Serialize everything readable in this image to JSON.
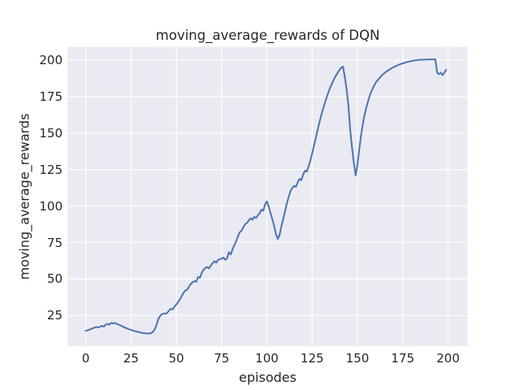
{
  "chart_data": {
    "type": "line",
    "title": "moving_average_rewards of DQN",
    "xlabel": "episodes",
    "ylabel": "moving_average_rewards",
    "x_ticks": [
      0,
      25,
      50,
      75,
      100,
      125,
      150,
      175,
      200
    ],
    "y_ticks": [
      25,
      50,
      75,
      100,
      125,
      150,
      175,
      200
    ],
    "xlim": [
      -10,
      210.8
    ],
    "ylim": [
      4,
      209.1
    ],
    "grid": true,
    "legend": null,
    "colors": {
      "line": "#4c72b0",
      "axes_background": "#eaeaf2",
      "grid": "#ffffff",
      "figure_background": "#ffffff",
      "text": "#262626"
    },
    "series": [
      {
        "name": "moving_average_rewards",
        "points": [
          [
            0,
            14.5
          ],
          [
            1,
            14.8
          ],
          [
            2,
            15.3
          ],
          [
            3,
            15.8
          ],
          [
            4,
            16.3
          ],
          [
            5,
            16.8
          ],
          [
            6,
            17.2
          ],
          [
            7,
            16.7
          ],
          [
            8,
            17.4
          ],
          [
            9,
            17.9
          ],
          [
            10,
            17.4
          ],
          [
            11,
            18.8
          ],
          [
            12,
            19.2
          ],
          [
            13,
            18.7
          ],
          [
            14,
            19.9
          ],
          [
            15,
            19.6
          ],
          [
            16,
            19.9
          ],
          [
            17,
            19.3
          ],
          [
            18,
            18.8
          ],
          [
            19,
            18.3
          ],
          [
            20,
            17.6
          ],
          [
            21,
            17.1
          ],
          [
            22,
            16.5
          ],
          [
            23,
            16.0
          ],
          [
            24,
            15.5
          ],
          [
            25,
            15.1
          ],
          [
            26,
            14.7
          ],
          [
            27,
            14.3
          ],
          [
            28,
            14.0
          ],
          [
            29,
            13.7
          ],
          [
            30,
            13.4
          ],
          [
            31,
            13.1
          ],
          [
            32,
            12.9
          ],
          [
            33,
            12.8
          ],
          [
            34,
            12.7
          ],
          [
            35,
            12.6
          ],
          [
            36,
            12.9
          ],
          [
            37,
            13.7
          ],
          [
            38,
            15.4
          ],
          [
            39,
            18.3
          ],
          [
            40,
            22.4
          ],
          [
            41,
            24.6
          ],
          [
            42,
            25.9
          ],
          [
            43,
            26.4
          ],
          [
            44,
            26.1
          ],
          [
            45,
            26.9
          ],
          [
            46,
            28.4
          ],
          [
            47,
            29.6
          ],
          [
            48,
            29.2
          ],
          [
            49,
            31.2
          ],
          [
            50,
            32.6
          ],
          [
            51,
            34.2
          ],
          [
            52,
            36.2
          ],
          [
            53,
            38.4
          ],
          [
            54,
            40.6
          ],
          [
            55,
            42.2
          ],
          [
            56,
            42.6
          ],
          [
            57,
            44.8
          ],
          [
            58,
            46.6
          ],
          [
            59,
            47.8
          ],
          [
            60,
            48.6
          ],
          [
            61,
            48.1
          ],
          [
            62,
            51.4
          ],
          [
            63,
            50.8
          ],
          [
            64,
            54.2
          ],
          [
            65,
            56.2
          ],
          [
            66,
            57.6
          ],
          [
            67,
            58.2
          ],
          [
            68,
            57.3
          ],
          [
            69,
            59.2
          ],
          [
            70,
            60.8
          ],
          [
            71,
            62.2
          ],
          [
            72,
            61.2
          ],
          [
            73,
            63.1
          ],
          [
            74,
            63.6
          ],
          [
            75,
            64.0
          ],
          [
            76,
            64.6
          ],
          [
            77,
            63.2
          ],
          [
            78,
            64.2
          ],
          [
            79,
            68.4
          ],
          [
            80,
            66.8
          ],
          [
            81,
            70.2
          ],
          [
            82,
            73.2
          ],
          [
            83,
            75.8
          ],
          [
            84,
            79.2
          ],
          [
            85,
            82.0
          ],
          [
            86,
            83.2
          ],
          [
            87,
            85.6
          ],
          [
            88,
            87.6
          ],
          [
            89,
            88.4
          ],
          [
            90,
            90.2
          ],
          [
            91,
            91.6
          ],
          [
            92,
            90.6
          ],
          [
            93,
            92.6
          ],
          [
            94,
            91.8
          ],
          [
            95,
            93.6
          ],
          [
            96,
            95.2
          ],
          [
            97,
            97.6
          ],
          [
            98,
            96.8
          ],
          [
            99,
            101.2
          ],
          [
            100,
            103.2
          ],
          [
            101,
            99.6
          ],
          [
            102,
            95.2
          ],
          [
            103,
            91.0
          ],
          [
            104,
            86.4
          ],
          [
            105,
            80.8
          ],
          [
            106,
            77.4
          ],
          [
            107,
            80.2
          ],
          [
            108,
            86.2
          ],
          [
            109,
            91.2
          ],
          [
            110,
            96.4
          ],
          [
            111,
            101.8
          ],
          [
            112,
            106.2
          ],
          [
            113,
            110.2
          ],
          [
            114,
            112.4
          ],
          [
            115,
            113.8
          ],
          [
            116,
            113.2
          ],
          [
            117,
            116.2
          ],
          [
            118,
            118.6
          ],
          [
            119,
            117.8
          ],
          [
            120,
            121.6
          ],
          [
            121,
            124.2
          ],
          [
            122,
            123.6
          ],
          [
            123,
            127.2
          ],
          [
            124,
            131.2
          ],
          [
            125,
            136.2
          ],
          [
            126,
            141.4
          ],
          [
            127,
            146.8
          ],
          [
            128,
            152.2
          ],
          [
            129,
            157.4
          ],
          [
            130,
            162.2
          ],
          [
            131,
            166.6
          ],
          [
            132,
            170.6
          ],
          [
            133,
            174.6
          ],
          [
            134,
            178.2
          ],
          [
            135,
            181.4
          ],
          [
            136,
            184.2
          ],
          [
            137,
            186.8
          ],
          [
            138,
            189.2
          ],
          [
            139,
            191.2
          ],
          [
            140,
            193.2
          ],
          [
            141,
            194.8
          ],
          [
            142,
            195.6
          ],
          [
            143,
            188.5
          ],
          [
            144,
            180.0
          ],
          [
            145,
            169.0
          ],
          [
            146,
            152.0
          ],
          [
            147,
            140.0
          ],
          [
            148,
            129.5
          ],
          [
            149,
            121.0
          ],
          [
            150,
            128.5
          ],
          [
            151,
            139.0
          ],
          [
            152,
            148.5
          ],
          [
            153,
            156.5
          ],
          [
            154,
            163.0
          ],
          [
            155,
            168.0
          ],
          [
            156,
            172.5
          ],
          [
            157,
            176.5
          ],
          [
            158,
            179.5
          ],
          [
            159,
            182.0
          ],
          [
            160,
            184.5
          ],
          [
            161,
            186.0
          ],
          [
            162,
            187.5
          ],
          [
            163,
            189.0
          ],
          [
            164,
            190.2
          ],
          [
            165,
            191.2
          ],
          [
            166,
            192.2
          ],
          [
            167,
            193.0
          ],
          [
            168,
            193.8
          ],
          [
            169,
            194.6
          ],
          [
            170,
            195.2
          ],
          [
            171,
            195.8
          ],
          [
            172,
            196.4
          ],
          [
            173,
            196.9
          ],
          [
            174,
            197.4
          ],
          [
            175,
            197.8
          ],
          [
            176,
            198.2
          ],
          [
            177,
            198.6
          ],
          [
            178,
            198.9
          ],
          [
            179,
            199.2
          ],
          [
            180,
            199.4
          ],
          [
            181,
            199.7
          ],
          [
            182,
            199.9
          ],
          [
            183,
            200.0
          ],
          [
            184,
            200.2
          ],
          [
            185,
            200.3
          ],
          [
            186,
            200.3
          ],
          [
            187,
            200.4
          ],
          [
            188,
            200.4
          ],
          [
            189,
            200.5
          ],
          [
            190,
            200.5
          ],
          [
            191,
            200.5
          ],
          [
            192,
            200.5
          ],
          [
            193,
            200.5
          ],
          [
            194,
            191.3
          ],
          [
            195,
            190.4
          ],
          [
            196,
            191.4
          ],
          [
            197,
            189.7
          ],
          [
            198,
            191.6
          ],
          [
            199,
            193.3
          ]
        ]
      }
    ]
  }
}
